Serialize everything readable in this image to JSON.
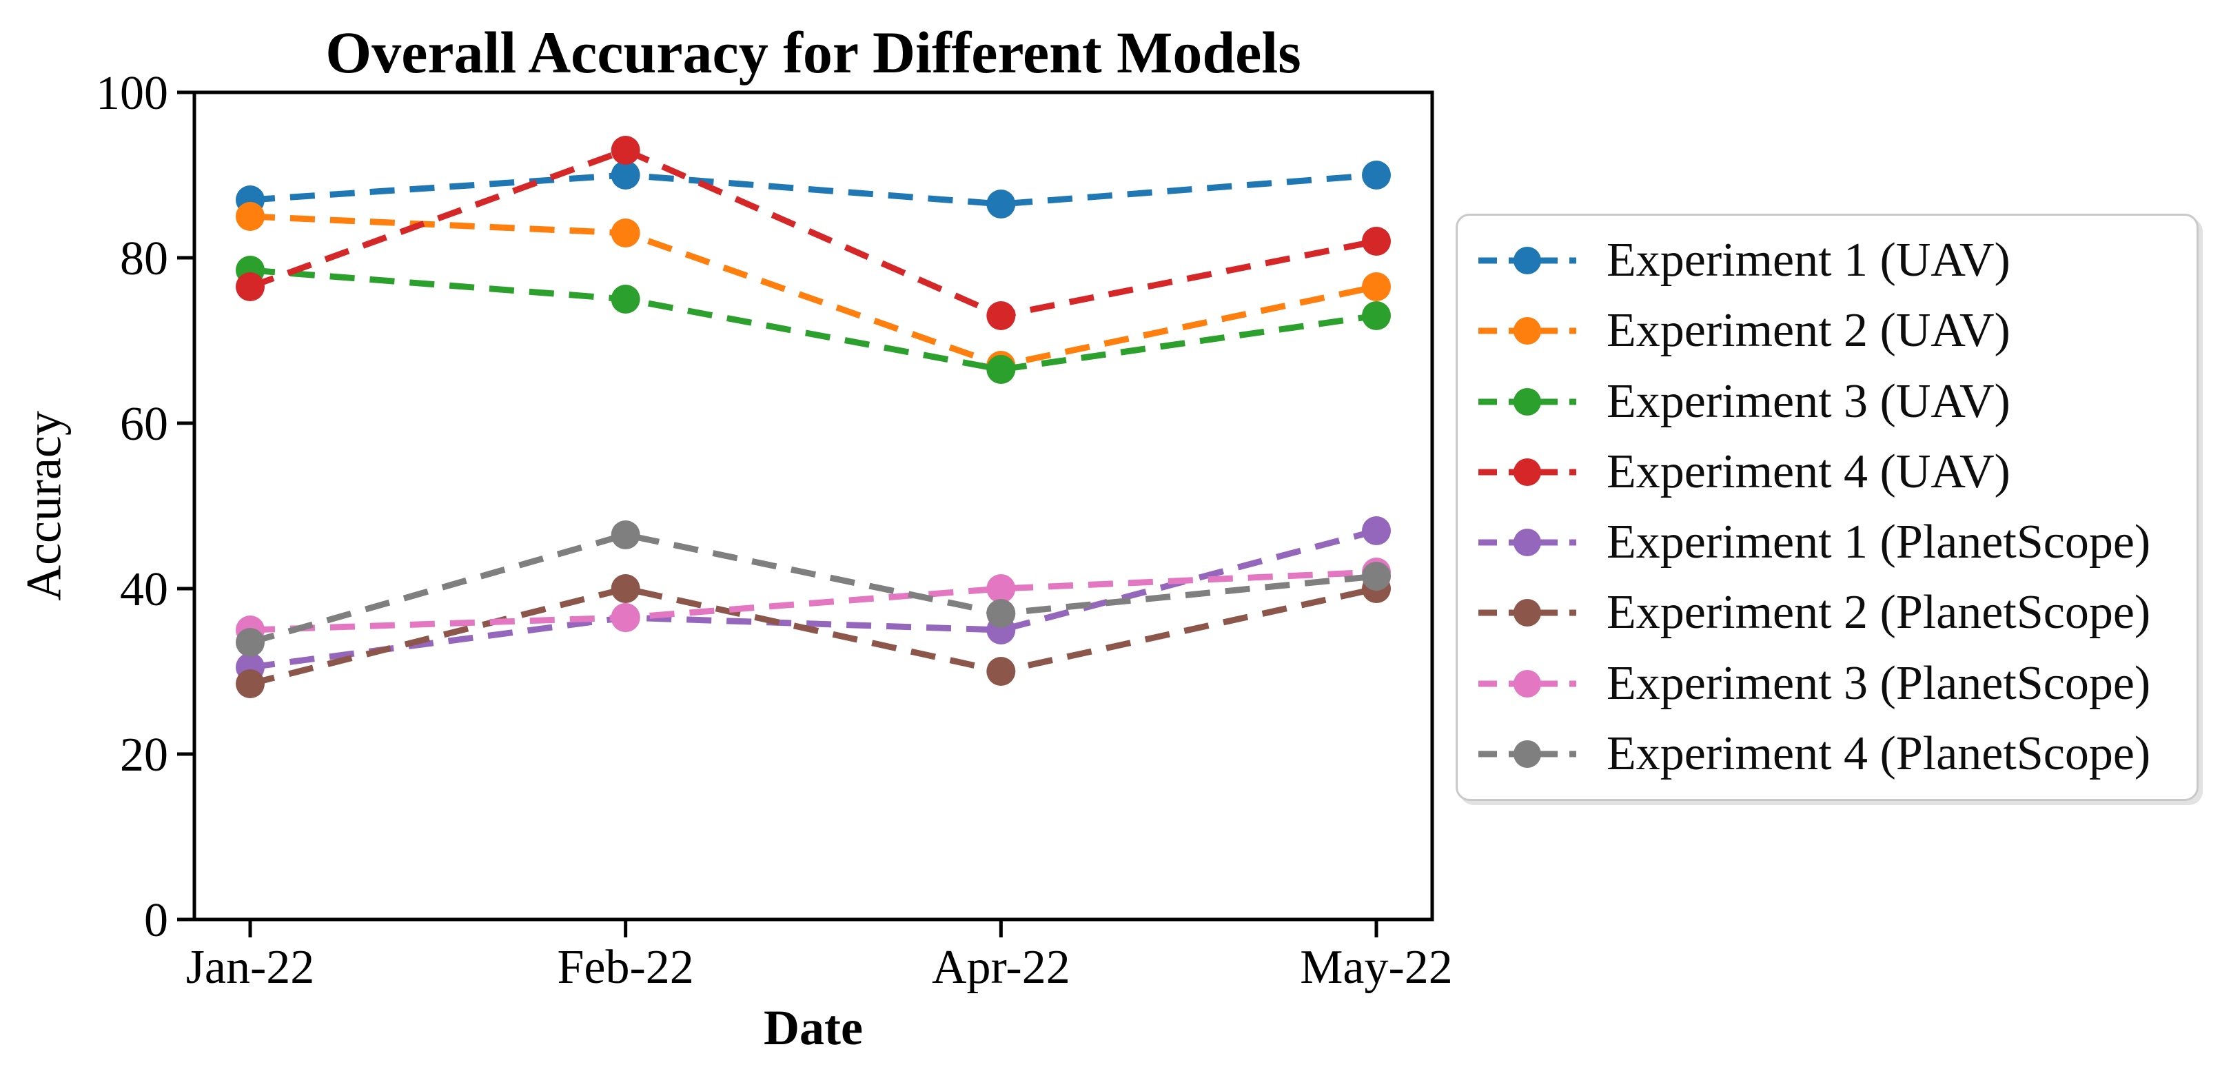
{
  "chart_data": {
    "type": "line",
    "title": "Overall Accuracy for Different Models",
    "xlabel": "Date",
    "ylabel": "Accuracy",
    "categories": [
      "Jan-22",
      "Feb-22",
      "Apr-22",
      "May-22"
    ],
    "ylim": [
      0,
      100
    ],
    "yticks": [
      0,
      20,
      40,
      60,
      80,
      100
    ],
    "grid": false,
    "line_style": "dashed",
    "marker": "circle",
    "legend_position": "right",
    "series": [
      {
        "name": "Experiment 1 (UAV)",
        "color": "#1f77b4",
        "values": [
          87,
          90,
          86.5,
          90
        ]
      },
      {
        "name": "Experiment 2 (UAV)",
        "color": "#ff7f0e",
        "values": [
          85,
          83,
          67,
          76.5
        ]
      },
      {
        "name": "Experiment 3 (UAV)",
        "color": "#2ca02c",
        "values": [
          78.5,
          75,
          66.5,
          73
        ]
      },
      {
        "name": "Experiment 4 (UAV)",
        "color": "#d62728",
        "values": [
          76.5,
          93,
          73,
          82
        ]
      },
      {
        "name": "Experiment 1 (PlanetScope)",
        "color": "#9467bd",
        "values": [
          30.5,
          36.5,
          35,
          47
        ]
      },
      {
        "name": "Experiment 2 (PlanetScope)",
        "color": "#8c564b",
        "values": [
          28.5,
          40,
          30,
          40
        ]
      },
      {
        "name": "Experiment 3 (PlanetScope)",
        "color": "#e377c2",
        "values": [
          35,
          36.5,
          40,
          42
        ]
      },
      {
        "name": "Experiment 4 (PlanetScope)",
        "color": "#7f7f7f",
        "values": [
          33.5,
          46.5,
          37,
          41.5
        ]
      }
    ]
  }
}
